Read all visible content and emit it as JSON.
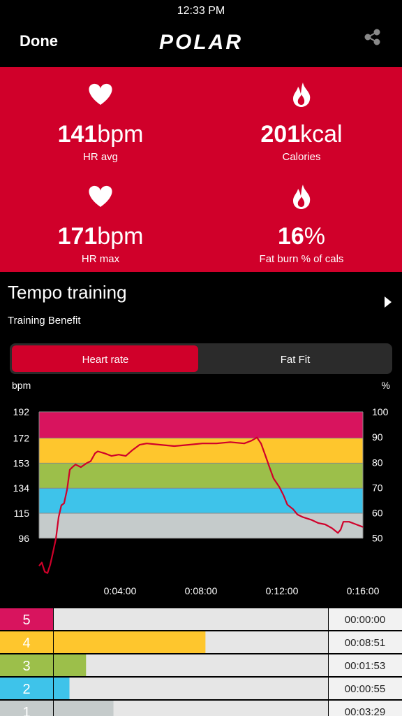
{
  "status_bar": {
    "time": "12:33 PM"
  },
  "nav": {
    "done": "Done",
    "logo": "POLAR"
  },
  "stats": [
    {
      "value": 141,
      "unit": "bpm",
      "label": "HR avg"
    },
    {
      "value": 201,
      "unit": "kcal",
      "label": "Calories"
    },
    {
      "value": 171,
      "unit": "bpm",
      "label": "HR max"
    },
    {
      "value": 16,
      "unit": "%",
      "label": "Fat burn % of cals"
    }
  ],
  "workout": {
    "title": "Tempo training",
    "subtitle": "Training Benefit"
  },
  "tabs": {
    "items": [
      "Heart rate",
      "Fat Fit"
    ],
    "active": 0
  },
  "chart_data": {
    "type": "line",
    "ylabel": "bpm",
    "y2label": "%",
    "color": "#d0002a",
    "x": [
      0,
      8,
      17,
      25,
      33,
      41,
      50,
      58,
      66,
      74,
      83,
      91,
      99,
      108,
      124,
      141,
      153,
      166,
      174,
      194,
      215,
      236,
      257,
      277,
      298,
      319,
      360,
      401,
      443,
      484,
      526,
      567,
      608,
      629,
      646,
      658,
      670,
      683,
      695,
      712,
      724,
      736,
      753,
      766,
      782,
      807,
      828,
      848,
      869,
      886,
      894,
      902,
      919,
      940,
      960
    ],
    "values": [
      75,
      77.5,
      70.5,
      69.5,
      76,
      85,
      96,
      112,
      121,
      122.5,
      133,
      148,
      150,
      152,
      150,
      153,
      154.5,
      160.5,
      162,
      160.5,
      158.5,
      159.5,
      158.5,
      163,
      167,
      168,
      167,
      166,
      167,
      168,
      168,
      169,
      168,
      170,
      172.5,
      168,
      159.5,
      150,
      141.5,
      135,
      129,
      121.5,
      118,
      114,
      112,
      110,
      107.5,
      106.5,
      103.5,
      100,
      102.5,
      108.5,
      108.5,
      106.5,
      104.5
    ],
    "xlim": [
      0,
      960
    ],
    "ylim": [
      64,
      192
    ],
    "y2lim": [
      33.3,
      100
    ],
    "yticks": [
      96,
      115,
      134,
      153,
      172,
      192
    ],
    "y2ticks": [
      50,
      60,
      70,
      80,
      90,
      100
    ],
    "xticks": [
      {
        "value": 240,
        "label": "0:04:00"
      },
      {
        "value": 480,
        "label": "0:08:00"
      },
      {
        "value": 720,
        "label": "0:12:00"
      },
      {
        "value": 960,
        "label": "0:16:00"
      }
    ]
  },
  "zone_table": {
    "rows": [
      {
        "zone": "5",
        "color": "#d8145e",
        "duration": {
          "value": 0,
          "label": "00:00:00"
        }
      },
      {
        "zone": "4",
        "color": "#fec62d",
        "duration": {
          "value": 531,
          "label": "00:08:51"
        }
      },
      {
        "zone": "3",
        "color": "#9cbf4a",
        "duration": {
          "value": 113,
          "label": "00:01:53"
        }
      },
      {
        "zone": "2",
        "color": "#3ec3ea",
        "duration": {
          "value": 55,
          "label": "00:00:55"
        }
      },
      {
        "zone": "1",
        "color": "#c5cbcb",
        "duration": {
          "value": 209,
          "label": "00:03:29"
        }
      }
    ]
  }
}
